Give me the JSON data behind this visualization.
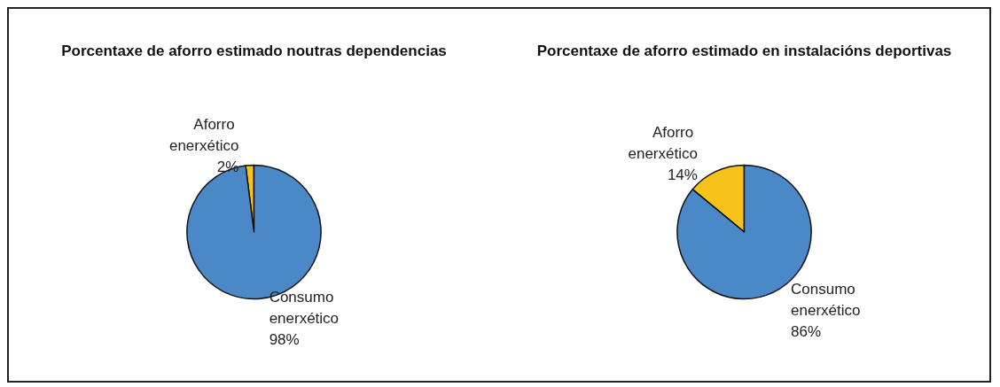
{
  "chart_data": [
    {
      "type": "pie",
      "title": "Porcentaxe de aforro estimado noutras dependencias",
      "categories": [
        "Aforro enerxético",
        "Consumo enerxético"
      ],
      "values": [
        2,
        98
      ],
      "colors": [
        "#f7c31a",
        "#4b88c8"
      ],
      "value_labels": [
        "2%",
        "98%"
      ],
      "legend": false
    },
    {
      "type": "pie",
      "title": "Porcentaxe de aforro estimado en instalacións deportivas",
      "categories": [
        "Aforro enerxético",
        "Consumo enerxético"
      ],
      "values": [
        14,
        86
      ],
      "colors": [
        "#f7c31a",
        "#4b88c8"
      ],
      "value_labels": [
        "14%",
        "86%"
      ],
      "legend": false
    }
  ]
}
